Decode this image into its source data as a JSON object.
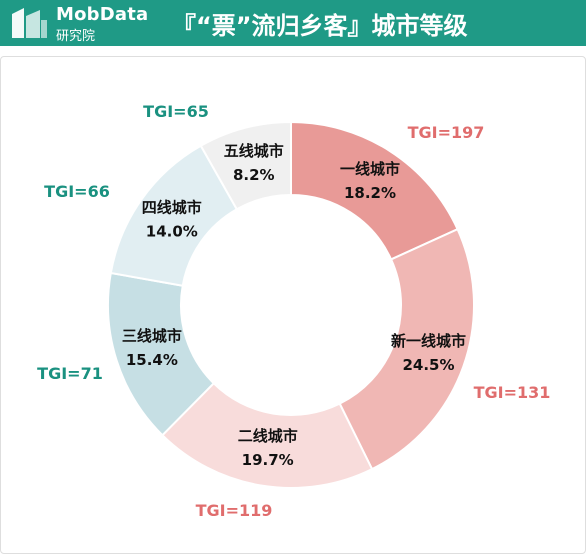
{
  "header": {
    "brand_en": "MobData",
    "brand_cn": "研究院",
    "title": "『“票”流归乡客』城市等级",
    "background": "#1f9a86"
  },
  "chart_data": {
    "type": "pie",
    "title": "『“票”流归乡客』城市等级",
    "donut": true,
    "categories": [
      "一线城市",
      "新一线城市",
      "二线城市",
      "三线城市",
      "四线城市",
      "五线城市"
    ],
    "values": [
      18.2,
      24.5,
      19.7,
      15.4,
      14.0,
      8.2
    ],
    "value_labels": [
      "18.2%",
      "24.5%",
      "19.7%",
      "15.4%",
      "14.0%",
      "8.2%"
    ],
    "tgi": [
      "TGI=197",
      "TGI=131",
      "TGI=119",
      "TGI=71",
      "TGI=66",
      "TGI=65"
    ],
    "colors": [
      "#e89a97",
      "#f0b7b4",
      "#f8dcdb",
      "#c6dfe4",
      "#e1eef2",
      "#f0f0f0"
    ],
    "tgi_colors": [
      "#e06d6d",
      "#e06d6d",
      "#e06d6d",
      "#1a9180",
      "#1a9180",
      "#1a9180"
    ]
  }
}
